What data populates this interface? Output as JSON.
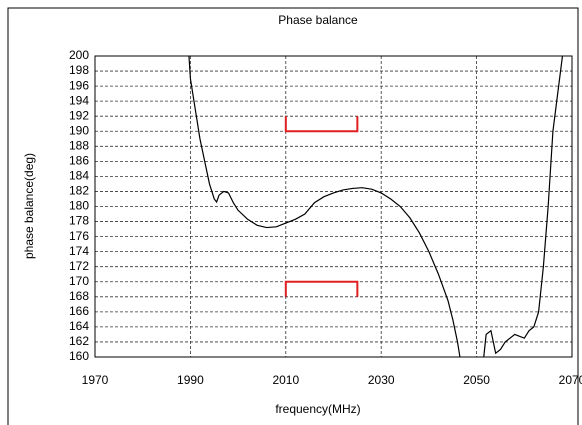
{
  "chart_data": {
    "type": "line",
    "title": "Phase balance",
    "xlabel": "frequency(MHz)",
    "ylabel": "phase balance(deg)",
    "xlim": [
      1970,
      2070
    ],
    "xticks": [
      1970,
      1990,
      2010,
      2030,
      2050,
      2070
    ],
    "ylim": [
      160,
      200
    ],
    "yticks": [
      160,
      162,
      164,
      166,
      168,
      170,
      172,
      174,
      176,
      178,
      180,
      182,
      184,
      186,
      188,
      190,
      192,
      194,
      196,
      198,
      200
    ],
    "grid": true,
    "series": [
      {
        "color": "#000000",
        "x": [
          1989.7,
          1990,
          1991,
          1992,
          1993,
          1994,
          1995,
          1995.5,
          1996,
          1997,
          1998,
          1999,
          2000,
          2002,
          2004,
          2006,
          2008,
          2010,
          2012,
          2014,
          2016,
          2018,
          2020,
          2022,
          2024,
          2026,
          2028,
          2030,
          2032,
          2034,
          2036,
          2038,
          2040,
          2042,
          2044,
          2045,
          2046,
          2046.5,
          2049,
          2051.5,
          2052,
          2053,
          2054,
          2055,
          2056,
          2058,
          2060,
          2061,
          2062,
          2063,
          2064,
          2065,
          2066,
          2067,
          2068
        ],
        "values": [
          200,
          197,
          193,
          189,
          186,
          183,
          181,
          180.6,
          181.5,
          182,
          181.8,
          180.5,
          179.5,
          178.3,
          177.5,
          177.2,
          177.3,
          177.8,
          178.3,
          179,
          180.5,
          181.3,
          181.8,
          182.2,
          182.4,
          182.5,
          182.3,
          181.8,
          181,
          180,
          178.5,
          176.5,
          174,
          171,
          167.5,
          165,
          162,
          160,
          null,
          160,
          163,
          163.5,
          160.5,
          161,
          162,
          163,
          162.5,
          163.5,
          164,
          166,
          172,
          180,
          190,
          195,
          200
        ]
      }
    ],
    "spec_marks": {
      "color": "#e02020",
      "items": [
        {
          "x0": 2010,
          "x1": 2025,
          "y": 190,
          "tick_to": 192
        },
        {
          "x0": 2010,
          "x1": 2025,
          "y": 170,
          "tick_to": 168
        }
      ]
    }
  }
}
